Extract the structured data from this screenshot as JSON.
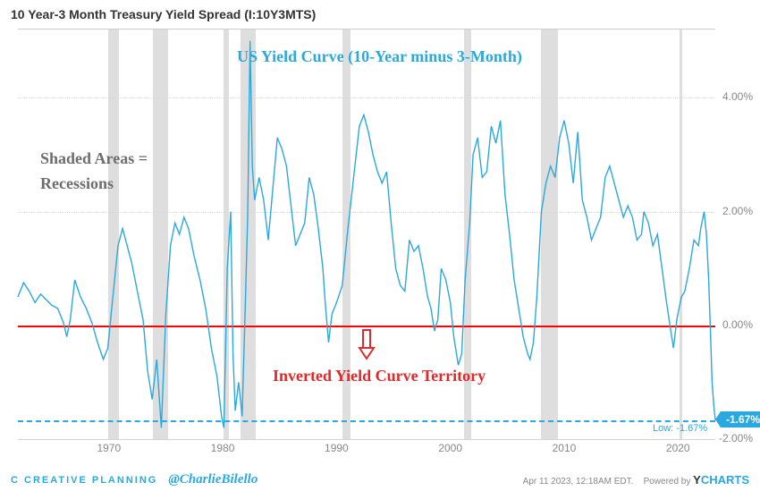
{
  "title": "10 Year-3 Month Treasury Yield Spread (I:10Y3MTS)",
  "annotations": {
    "curve_label": "US Yield Curve (10-Year minus 3-Month)",
    "shaded1": "Shaded Areas =",
    "shaded2": "Recessions",
    "inverted": "Inverted Yield Curve Territory",
    "low_label": "Low: -1.67%"
  },
  "flag_value": "-1.67%",
  "footer": {
    "logo": "CREATIVE PLANNING",
    "handle": "@CharlieBilello",
    "date": "Apr 11 2023, 12:18AM EDT.",
    "powered": "Powered by",
    "brand": "CHARTS"
  },
  "chart": {
    "type": "line",
    "x_range": [
      1962,
      2023.28
    ],
    "y_range": [
      -2.0,
      5.2
    ],
    "y_ticks": [
      -2.0,
      0.0,
      2.0,
      4.0
    ],
    "y_tick_labels": [
      "-2.00%",
      "0.00%",
      "2.00%",
      "4.00%"
    ],
    "x_ticks": [
      1970,
      1980,
      1990,
      2000,
      2010,
      2020
    ],
    "x_tick_labels": [
      "1970",
      "1980",
      "1990",
      "2000",
      "2010",
      "2020"
    ],
    "line_color": "#2aa8e0",
    "line_width": 1.4,
    "zero_line_color": "#ff0000",
    "low_line_color": "#2aa8e0",
    "low_value": -1.67,
    "recession_band_color": "#d8d8d8",
    "background_color": "#ffffff",
    "grid_color": "#dddddd",
    "recessions": [
      [
        1969.9,
        1970.9
      ],
      [
        1973.85,
        1975.2
      ],
      [
        1980.05,
        1980.55
      ],
      [
        1981.55,
        1982.9
      ],
      [
        1990.55,
        1991.2
      ],
      [
        2001.2,
        2001.85
      ],
      [
        2007.95,
        2009.45
      ],
      [
        2020.1,
        2020.35
      ]
    ],
    "series": [
      [
        1962.0,
        0.5
      ],
      [
        1962.5,
        0.75
      ],
      [
        1963.0,
        0.6
      ],
      [
        1963.5,
        0.4
      ],
      [
        1964.0,
        0.55
      ],
      [
        1964.5,
        0.45
      ],
      [
        1965.0,
        0.35
      ],
      [
        1965.5,
        0.3
      ],
      [
        1966.0,
        0.05
      ],
      [
        1966.3,
        -0.2
      ],
      [
        1966.6,
        0.1
      ],
      [
        1967.0,
        0.8
      ],
      [
        1967.5,
        0.5
      ],
      [
        1968.0,
        0.3
      ],
      [
        1968.5,
        0.05
      ],
      [
        1969.0,
        -0.3
      ],
      [
        1969.5,
        -0.6
      ],
      [
        1969.9,
        -0.4
      ],
      [
        1970.3,
        0.4
      ],
      [
        1970.8,
        1.4
      ],
      [
        1971.2,
        1.7
      ],
      [
        1971.6,
        1.4
      ],
      [
        1972.0,
        1.1
      ],
      [
        1972.5,
        0.6
      ],
      [
        1973.0,
        0.1
      ],
      [
        1973.4,
        -0.8
      ],
      [
        1973.8,
        -1.3
      ],
      [
        1974.2,
        -0.6
      ],
      [
        1974.6,
        -1.8
      ],
      [
        1975.0,
        0.2
      ],
      [
        1975.4,
        1.4
      ],
      [
        1975.8,
        1.8
      ],
      [
        1976.2,
        1.6
      ],
      [
        1976.6,
        1.9
      ],
      [
        1977.0,
        1.7
      ],
      [
        1977.5,
        1.2
      ],
      [
        1978.0,
        0.8
      ],
      [
        1978.5,
        0.3
      ],
      [
        1979.0,
        -0.4
      ],
      [
        1979.5,
        -0.9
      ],
      [
        1979.9,
        -1.6
      ],
      [
        1980.1,
        -1.8
      ],
      [
        1980.4,
        1.0
      ],
      [
        1980.7,
        2.0
      ],
      [
        1980.9,
        -0.5
      ],
      [
        1981.1,
        -1.5
      ],
      [
        1981.4,
        -1.0
      ],
      [
        1981.7,
        -1.6
      ],
      [
        1982.0,
        0.5
      ],
      [
        1982.2,
        2.0
      ],
      [
        1982.4,
        5.0
      ],
      [
        1982.6,
        2.8
      ],
      [
        1982.8,
        2.2
      ],
      [
        1983.2,
        2.6
      ],
      [
        1983.6,
        2.2
      ],
      [
        1984.0,
        1.5
      ],
      [
        1984.4,
        2.4
      ],
      [
        1984.8,
        3.3
      ],
      [
        1985.2,
        3.1
      ],
      [
        1985.6,
        2.8
      ],
      [
        1986.0,
        2.1
      ],
      [
        1986.4,
        1.4
      ],
      [
        1986.8,
        1.6
      ],
      [
        1987.2,
        1.8
      ],
      [
        1987.6,
        2.6
      ],
      [
        1988.0,
        2.3
      ],
      [
        1988.4,
        1.7
      ],
      [
        1988.8,
        1.0
      ],
      [
        1989.0,
        0.4
      ],
      [
        1989.3,
        -0.3
      ],
      [
        1989.6,
        0.2
      ],
      [
        1990.0,
        0.4
      ],
      [
        1990.5,
        0.7
      ],
      [
        1991.0,
        1.7
      ],
      [
        1991.5,
        2.6
      ],
      [
        1992.0,
        3.5
      ],
      [
        1992.4,
        3.7
      ],
      [
        1992.8,
        3.4
      ],
      [
        1993.2,
        3.0
      ],
      [
        1993.6,
        2.7
      ],
      [
        1994.0,
        2.5
      ],
      [
        1994.4,
        2.7
      ],
      [
        1994.8,
        1.8
      ],
      [
        1995.2,
        1.0
      ],
      [
        1995.6,
        0.7
      ],
      [
        1996.0,
        0.6
      ],
      [
        1996.4,
        1.5
      ],
      [
        1996.8,
        1.3
      ],
      [
        1997.2,
        1.4
      ],
      [
        1997.6,
        1.0
      ],
      [
        1998.0,
        0.5
      ],
      [
        1998.3,
        0.3
      ],
      [
        1998.6,
        -0.1
      ],
      [
        1998.9,
        0.1
      ],
      [
        1999.2,
        1.0
      ],
      [
        1999.6,
        0.8
      ],
      [
        2000.0,
        0.4
      ],
      [
        2000.3,
        -0.2
      ],
      [
        2000.7,
        -0.7
      ],
      [
        2001.0,
        -0.5
      ],
      [
        2001.3,
        0.8
      ],
      [
        2001.7,
        1.8
      ],
      [
        2002.0,
        3.0
      ],
      [
        2002.4,
        3.3
      ],
      [
        2002.8,
        2.6
      ],
      [
        2003.2,
        2.7
      ],
      [
        2003.6,
        3.5
      ],
      [
        2004.0,
        3.2
      ],
      [
        2004.4,
        3.6
      ],
      [
        2004.8,
        2.3
      ],
      [
        2005.2,
        1.6
      ],
      [
        2005.6,
        0.8
      ],
      [
        2006.0,
        0.3
      ],
      [
        2006.4,
        -0.2
      ],
      [
        2006.8,
        -0.5
      ],
      [
        2007.0,
        -0.6
      ],
      [
        2007.3,
        -0.3
      ],
      [
        2007.6,
        0.5
      ],
      [
        2008.0,
        2.0
      ],
      [
        2008.4,
        2.5
      ],
      [
        2008.8,
        2.8
      ],
      [
        2009.2,
        2.6
      ],
      [
        2009.6,
        3.3
      ],
      [
        2010.0,
        3.6
      ],
      [
        2010.4,
        3.2
      ],
      [
        2010.8,
        2.5
      ],
      [
        2011.2,
        3.4
      ],
      [
        2011.6,
        2.2
      ],
      [
        2012.0,
        1.9
      ],
      [
        2012.4,
        1.5
      ],
      [
        2012.8,
        1.7
      ],
      [
        2013.2,
        1.9
      ],
      [
        2013.6,
        2.6
      ],
      [
        2014.0,
        2.8
      ],
      [
        2014.4,
        2.5
      ],
      [
        2014.8,
        2.2
      ],
      [
        2015.2,
        1.9
      ],
      [
        2015.6,
        2.1
      ],
      [
        2016.0,
        1.9
      ],
      [
        2016.4,
        1.5
      ],
      [
        2016.8,
        1.6
      ],
      [
        2017.0,
        2.0
      ],
      [
        2017.4,
        1.8
      ],
      [
        2017.8,
        1.4
      ],
      [
        2018.2,
        1.6
      ],
      [
        2018.6,
        1.0
      ],
      [
        2019.0,
        0.4
      ],
      [
        2019.3,
        0.0
      ],
      [
        2019.6,
        -0.4
      ],
      [
        2019.9,
        0.1
      ],
      [
        2020.1,
        0.3
      ],
      [
        2020.3,
        0.5
      ],
      [
        2020.6,
        0.6
      ],
      [
        2021.0,
        1.0
      ],
      [
        2021.4,
        1.5
      ],
      [
        2021.8,
        1.4
      ],
      [
        2022.0,
        1.7
      ],
      [
        2022.3,
        2.0
      ],
      [
        2022.5,
        1.6
      ],
      [
        2022.7,
        0.8
      ],
      [
        2022.9,
        -0.4
      ],
      [
        2023.0,
        -1.0
      ],
      [
        2023.15,
        -1.4
      ],
      [
        2023.28,
        -1.67
      ]
    ]
  },
  "colors": {
    "title": "#333333",
    "anno_blue": "#2aa8e0",
    "anno_dark": "#6d6d6d",
    "anno_red": "#e02a2a"
  }
}
